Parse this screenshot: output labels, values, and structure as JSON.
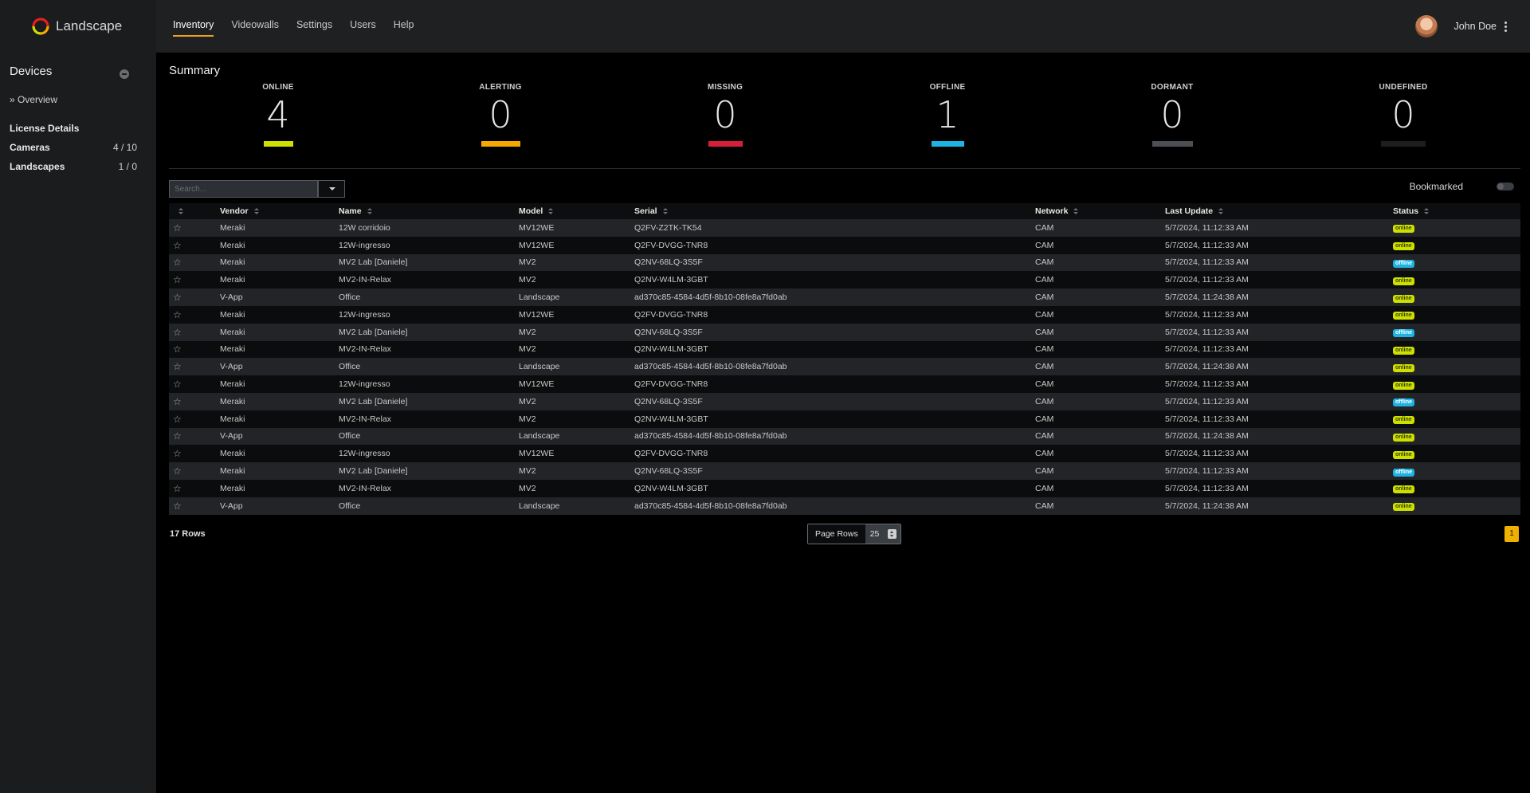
{
  "app": {
    "name": "Landscape"
  },
  "nav": {
    "tabs": [
      {
        "label": "Inventory",
        "active": true
      },
      {
        "label": "Videowalls"
      },
      {
        "label": "Settings"
      },
      {
        "label": "Users"
      },
      {
        "label": "Help"
      }
    ]
  },
  "user": {
    "name": "John Doe"
  },
  "sidebar": {
    "title": "Devices",
    "overview": "» Overview",
    "license_title": "License Details",
    "licenses": [
      {
        "label": "Cameras",
        "value": "4 / 10"
      },
      {
        "label": "Landscapes",
        "value": "1 / 0"
      }
    ]
  },
  "summary": {
    "title": "Summary",
    "stats": [
      {
        "label": "ONLINE",
        "value": "4",
        "color": "#cde000"
      },
      {
        "label": "ALERTING",
        "value": "0",
        "color": "#f5a800"
      },
      {
        "label": "MISSING",
        "value": "0",
        "color": "#d6203a"
      },
      {
        "label": "OFFLINE",
        "value": "1",
        "color": "#1db4e4"
      },
      {
        "label": "DORMANT",
        "value": "0",
        "color": "#4c4f53"
      },
      {
        "label": "UNDEFINED",
        "value": "0",
        "color": "#1c1e20"
      }
    ]
  },
  "search": {
    "placeholder": "Search..."
  },
  "bookmarked_label": "Bookmarked",
  "table": {
    "headers": [
      "Vendor",
      "Name",
      "Model",
      "Serial",
      "Network",
      "Last Update",
      "Status"
    ],
    "rows": [
      [
        "Meraki",
        "12W corridoio",
        "MV12WE",
        "Q2FV-Z2TK-TK54",
        "CAM",
        "5/7/2024, 11:12:33 AM",
        "online"
      ],
      [
        "Meraki",
        "12W-ingresso",
        "MV12WE",
        "Q2FV-DVGG-TNR8",
        "CAM",
        "5/7/2024, 11:12:33 AM",
        "online"
      ],
      [
        "Meraki",
        "MV2 Lab [Daniele]",
        "MV2",
        "Q2NV-68LQ-3S5F",
        "CAM",
        "5/7/2024, 11:12:33 AM",
        "offline"
      ],
      [
        "Meraki",
        "MV2-IN-Relax",
        "MV2",
        "Q2NV-W4LM-3GBT",
        "CAM",
        "5/7/2024, 11:12:33 AM",
        "online"
      ],
      [
        "V-App",
        "Office",
        "Landscape",
        "ad370c85-4584-4d5f-8b10-08fe8a7fd0ab",
        "CAM",
        "5/7/2024, 11:24:38 AM",
        "online"
      ],
      [
        "Meraki",
        "12W-ingresso",
        "MV12WE",
        "Q2FV-DVGG-TNR8",
        "CAM",
        "5/7/2024, 11:12:33 AM",
        "online"
      ],
      [
        "Meraki",
        "MV2 Lab [Daniele]",
        "MV2",
        "Q2NV-68LQ-3S5F",
        "CAM",
        "5/7/2024, 11:12:33 AM",
        "offline"
      ],
      [
        "Meraki",
        "MV2-IN-Relax",
        "MV2",
        "Q2NV-W4LM-3GBT",
        "CAM",
        "5/7/2024, 11:12:33 AM",
        "online"
      ],
      [
        "V-App",
        "Office",
        "Landscape",
        "ad370c85-4584-4d5f-8b10-08fe8a7fd0ab",
        "CAM",
        "5/7/2024, 11:24:38 AM",
        "online"
      ],
      [
        "Meraki",
        "12W-ingresso",
        "MV12WE",
        "Q2FV-DVGG-TNR8",
        "CAM",
        "5/7/2024, 11:12:33 AM",
        "online"
      ],
      [
        "Meraki",
        "MV2 Lab [Daniele]",
        "MV2",
        "Q2NV-68LQ-3S5F",
        "CAM",
        "5/7/2024, 11:12:33 AM",
        "offline"
      ],
      [
        "Meraki",
        "MV2-IN-Relax",
        "MV2",
        "Q2NV-W4LM-3GBT",
        "CAM",
        "5/7/2024, 11:12:33 AM",
        "online"
      ],
      [
        "V-App",
        "Office",
        "Landscape",
        "ad370c85-4584-4d5f-8b10-08fe8a7fd0ab",
        "CAM",
        "5/7/2024, 11:24:38 AM",
        "online"
      ],
      [
        "Meraki",
        "12W-ingresso",
        "MV12WE",
        "Q2FV-DVGG-TNR8",
        "CAM",
        "5/7/2024, 11:12:33 AM",
        "online"
      ],
      [
        "Meraki",
        "MV2 Lab [Daniele]",
        "MV2",
        "Q2NV-68LQ-3S5F",
        "CAM",
        "5/7/2024, 11:12:33 AM",
        "offline"
      ],
      [
        "Meraki",
        "MV2-IN-Relax",
        "MV2",
        "Q2NV-W4LM-3GBT",
        "CAM",
        "5/7/2024, 11:12:33 AM",
        "online"
      ],
      [
        "V-App",
        "Office",
        "Landscape",
        "ad370c85-4584-4d5f-8b10-08fe8a7fd0ab",
        "CAM",
        "5/7/2024, 11:24:38 AM",
        "online"
      ]
    ]
  },
  "footer": {
    "rows_count": "17 Rows",
    "page_rows_label": "Page Rows",
    "page_rows_value": "25",
    "current_page": "1"
  }
}
